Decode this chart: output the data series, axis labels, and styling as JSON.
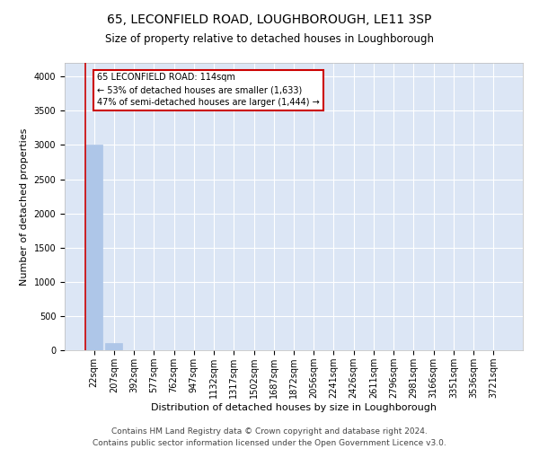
{
  "title": "65, LECONFIELD ROAD, LOUGHBOROUGH, LE11 3SP",
  "subtitle": "Size of property relative to detached houses in Loughborough",
  "xlabel": "Distribution of detached houses by size in Loughborough",
  "ylabel": "Number of detached properties",
  "categories": [
    "22sqm",
    "207sqm",
    "392sqm",
    "577sqm",
    "762sqm",
    "947sqm",
    "1132sqm",
    "1317sqm",
    "1502sqm",
    "1687sqm",
    "1872sqm",
    "2056sqm",
    "2241sqm",
    "2426sqm",
    "2611sqm",
    "2796sqm",
    "2981sqm",
    "3166sqm",
    "3351sqm",
    "3536sqm",
    "3721sqm"
  ],
  "values": [
    3000,
    110,
    0,
    0,
    0,
    0,
    0,
    0,
    0,
    0,
    0,
    0,
    0,
    0,
    0,
    0,
    0,
    0,
    0,
    0,
    0
  ],
  "bar_color": "#aec6e8",
  "bar_edge_color": "#aec6e8",
  "vline_color": "#cc0000",
  "annotation_box_text": "65 LECONFIELD ROAD: 114sqm\n← 53% of detached houses are smaller (1,633)\n47% of semi-detached houses are larger (1,444) →",
  "annotation_box_color": "#cc0000",
  "annotation_box_bg": "#ffffff",
  "ylim": [
    0,
    4200
  ],
  "yticks": [
    0,
    500,
    1000,
    1500,
    2000,
    2500,
    3000,
    3500,
    4000
  ],
  "background_color": "#dce6f5",
  "grid_color": "#ffffff",
  "footer_line1": "Contains HM Land Registry data © Crown copyright and database right 2024.",
  "footer_line2": "Contains public sector information licensed under the Open Government Licence v3.0.",
  "title_fontsize": 10,
  "subtitle_fontsize": 8.5,
  "ylabel_fontsize": 8,
  "xlabel_fontsize": 8,
  "tick_fontsize": 7,
  "footer_fontsize": 6.5
}
